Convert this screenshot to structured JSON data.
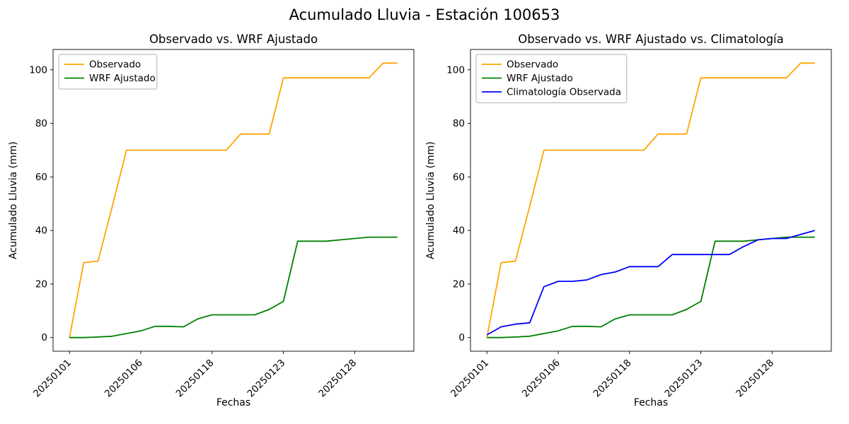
{
  "figure": {
    "title": "Acumulado Lluvia - Estación 100653",
    "background": "#ffffff"
  },
  "colors": {
    "observado": "#ffa500",
    "wrf": "#008000",
    "climatologia": "#0000ff",
    "axes": "#000000",
    "legend_border": "#b0b0b0"
  },
  "chart_data": [
    {
      "type": "line",
      "title": "Observado vs. WRF Ajustado",
      "xlabel": "Fechas",
      "ylabel": "Acumulado Lluvia (mm)",
      "legend_position": "upper left",
      "grid": false,
      "xlim": [
        -1.15,
        24.15
      ],
      "ylim": [
        -5.1,
        107.6
      ],
      "yticks": [
        0,
        20,
        40,
        60,
        80,
        100
      ],
      "xticks": {
        "positions": [
          0,
          5,
          10,
          15,
          20
        ],
        "labels": [
          "20250101",
          "20250106",
          "20250118",
          "20250123",
          "20250128"
        ]
      },
      "series": [
        {
          "name": "Observado",
          "color": "#ffa500",
          "values": [
            0,
            28,
            28.5,
            49,
            70,
            70,
            70,
            70,
            70,
            70,
            70,
            70,
            76,
            76,
            76,
            97,
            97,
            97,
            97,
            97,
            97,
            97,
            102.5,
            102.5
          ]
        },
        {
          "name": "WRF Ajustado",
          "color": "#008000",
          "values": [
            0,
            0,
            0.2,
            0.5,
            1.5,
            2.5,
            4.2,
            4.2,
            4,
            7,
            8.5,
            8.5,
            8.5,
            8.5,
            10.5,
            13.5,
            36,
            36,
            36,
            36.5,
            37,
            37.5,
            37.5,
            37.5
          ]
        }
      ]
    },
    {
      "type": "line",
      "title": "Observado vs. WRF Ajustado vs. Climatología",
      "xlabel": "Fechas",
      "ylabel": "Acumulado Lluvia (mm)",
      "legend_position": "upper left",
      "grid": false,
      "xlim": [
        -1.15,
        24.15
      ],
      "ylim": [
        -5.1,
        107.6
      ],
      "yticks": [
        0,
        20,
        40,
        60,
        80,
        100
      ],
      "xticks": {
        "positions": [
          0,
          5,
          10,
          15,
          20
        ],
        "labels": [
          "20250101",
          "20250106",
          "20250118",
          "20250123",
          "20250128"
        ]
      },
      "series": [
        {
          "name": "Observado",
          "color": "#ffa500",
          "values": [
            0,
            28,
            28.5,
            49,
            70,
            70,
            70,
            70,
            70,
            70,
            70,
            70,
            76,
            76,
            76,
            97,
            97,
            97,
            97,
            97,
            97,
            97,
            102.5,
            102.5
          ]
        },
        {
          "name": "WRF Ajustado",
          "color": "#008000",
          "values": [
            0,
            0,
            0.2,
            0.5,
            1.5,
            2.5,
            4.2,
            4.2,
            4,
            7,
            8.5,
            8.5,
            8.5,
            8.5,
            10.5,
            13.5,
            36,
            36,
            36,
            36.5,
            37,
            37.5,
            37.5,
            37.5
          ]
        },
        {
          "name": "Climatología Observada",
          "color": "#0000ff",
          "values": [
            1,
            4,
            5,
            5.5,
            19,
            21,
            21,
            21.5,
            23.5,
            24.5,
            26.5,
            26.5,
            26.5,
            31,
            31,
            31,
            31,
            31,
            34,
            36.5,
            37,
            37,
            38.5,
            40
          ]
        }
      ]
    }
  ]
}
